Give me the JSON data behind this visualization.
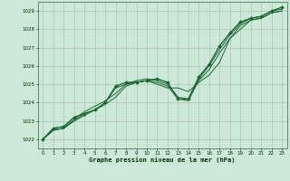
{
  "background_color": "#cce8d8",
  "plot_bg_color": "#cce8d8",
  "grid_color": "#aab8b0",
  "line_color": "#1a6633",
  "marker_color": "#1a6633",
  "xlabel": "Graphe pression niveau de la mer (hPa)",
  "ylim": [
    1021.5,
    1029.5
  ],
  "xlim": [
    -0.5,
    23.5
  ],
  "yticks": [
    1022,
    1023,
    1024,
    1025,
    1026,
    1027,
    1028,
    1029
  ],
  "xticks": [
    0,
    1,
    2,
    3,
    4,
    5,
    6,
    7,
    8,
    9,
    10,
    11,
    12,
    13,
    14,
    15,
    16,
    17,
    18,
    19,
    20,
    21,
    22,
    23
  ],
  "series": [
    [
      1022.0,
      1022.6,
      1022.7,
      1023.2,
      1023.4,
      1023.6,
      1024.0,
      1024.9,
      1025.1,
      1025.1,
      1025.2,
      1025.3,
      1025.1,
      1024.2,
      1024.2,
      1025.4,
      1026.1,
      1027.1,
      1027.8,
      1028.4,
      1028.6,
      1028.7,
      1029.0,
      1029.2
    ],
    [
      1022.0,
      1022.5,
      1022.6,
      1023.1,
      1023.5,
      1023.8,
      1024.1,
      1024.5,
      1025.0,
      1025.2,
      1025.3,
      1025.2,
      1025.0,
      1024.3,
      1024.2,
      1025.3,
      1026.0,
      1026.9,
      1027.7,
      1028.3,
      1028.6,
      1028.7,
      1029.0,
      1029.1
    ],
    [
      1022.0,
      1022.5,
      1022.6,
      1023.0,
      1023.4,
      1023.6,
      1023.9,
      1024.3,
      1024.9,
      1025.1,
      1025.2,
      1025.1,
      1024.9,
      1024.2,
      1024.1,
      1025.2,
      1025.8,
      1026.7,
      1027.5,
      1028.2,
      1028.5,
      1028.6,
      1028.9,
      1029.0
    ],
    [
      1022.0,
      1022.5,
      1022.6,
      1023.0,
      1023.3,
      1023.6,
      1024.0,
      1024.8,
      1025.0,
      1025.1,
      1025.2,
      1025.0,
      1024.8,
      1024.8,
      1024.6,
      1025.1,
      1025.5,
      1026.2,
      1027.5,
      1028.0,
      1028.5,
      1028.6,
      1028.9,
      1029.0
    ]
  ],
  "marker_y": [
    1022.0,
    1022.6,
    1022.7,
    1023.2,
    1023.4,
    1023.6,
    1024.0,
    1024.9,
    1025.1,
    1025.1,
    1025.2,
    1025.3,
    1025.1,
    1024.2,
    1024.2,
    1025.4,
    1026.1,
    1027.1,
    1027.8,
    1028.4,
    1028.6,
    1028.7,
    1029.0,
    1029.2
  ]
}
